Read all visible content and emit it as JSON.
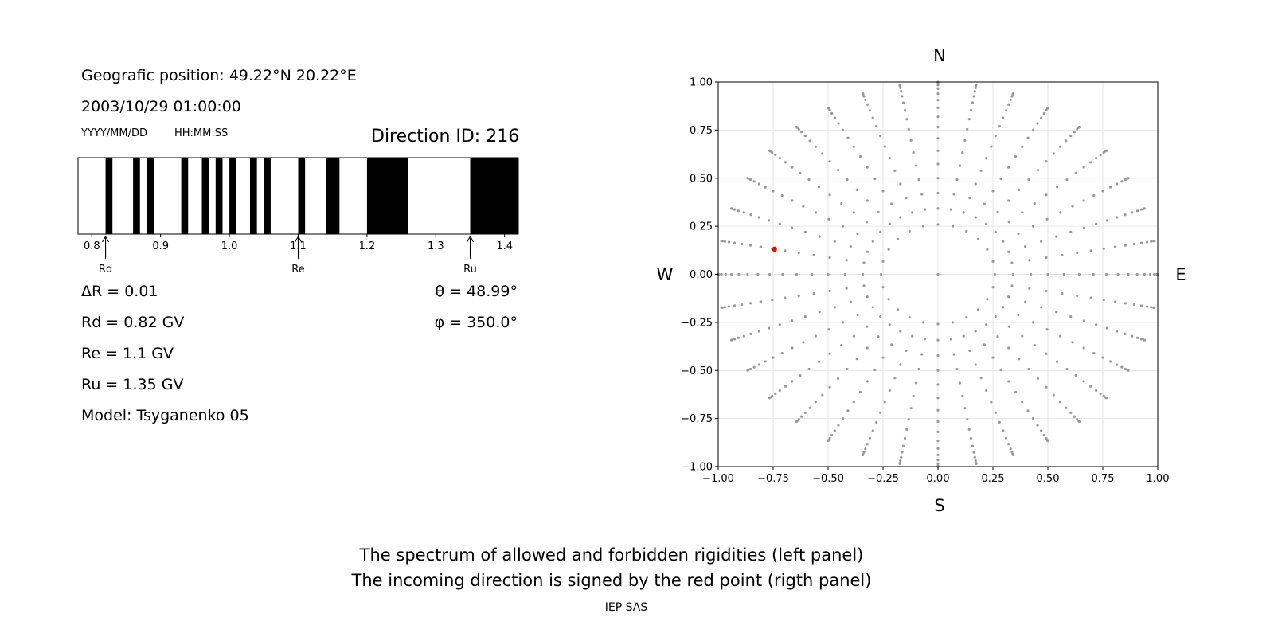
{
  "info": {
    "position": "Geografic position: 49.22°N 20.22°E",
    "datetime": "2003/10/29 01:00:00",
    "date_format": "YYYY/MM/DD",
    "time_format": "HH:MM:SS",
    "direction_id": "Direction ID: 216"
  },
  "params": {
    "delta_r": "ΔR = 0.01",
    "rd": "Rd = 0.82 GV",
    "re": "Re = 1.1 GV",
    "ru": "Ru = 1.35 GV",
    "model": "Model: Tsyganenko 05",
    "theta": "θ = 48.99°",
    "phi": "φ = 350.0°"
  },
  "compass": {
    "n": "N",
    "s": "S",
    "w": "W",
    "e": "E"
  },
  "caption": {
    "line1": "The spectrum of allowed and forbidden rigidities (left panel)",
    "line2": "The incoming direction is signed by the red point (rigth panel)",
    "credit": "IEP SAS"
  },
  "colors": {
    "forbidden": "#000000",
    "allowed": "#ffffff",
    "grid_points": "#999999",
    "highlight": "#ff0000"
  },
  "chart_data": [
    {
      "type": "bar",
      "subtype": "rigidity-spectrum",
      "xlim": [
        0.78,
        1.42
      ],
      "x_ticks": [
        0.8,
        0.9,
        1.0,
        1.1,
        1.2,
        1.3,
        1.4
      ],
      "x_tick_labels": [
        "0.8",
        "0.9",
        "1.0",
        "1.1",
        "1.2",
        "1.3",
        "1.4"
      ],
      "forbidden_intervals": [
        [
          0.82,
          0.83
        ],
        [
          0.86,
          0.87
        ],
        [
          0.88,
          0.89
        ],
        [
          0.93,
          0.94
        ],
        [
          0.96,
          0.97
        ],
        [
          0.98,
          0.99
        ],
        [
          1.0,
          1.01
        ],
        [
          1.03,
          1.04
        ],
        [
          1.05,
          1.06
        ],
        [
          1.1,
          1.11
        ],
        [
          1.14,
          1.16
        ],
        [
          1.2,
          1.26
        ],
        [
          1.35,
          1.42
        ]
      ],
      "markers": [
        {
          "label": "Rd",
          "value": 0.82
        },
        {
          "label": "Re",
          "value": 1.1
        },
        {
          "label": "Ru",
          "value": 1.35
        }
      ]
    },
    {
      "type": "scatter",
      "subtype": "direction-grid",
      "xlim": [
        -1.0,
        1.0
      ],
      "ylim": [
        -1.0,
        1.0
      ],
      "x_ticks": [
        -1.0,
        -0.75,
        -0.5,
        -0.25,
        0.0,
        0.25,
        0.5,
        0.75,
        1.0
      ],
      "x_tick_labels": [
        "−1.00",
        "−0.75",
        "−0.50",
        "−0.25",
        "0.00",
        "0.25",
        "0.50",
        "0.75",
        "1.00"
      ],
      "y_ticks": [
        1.0,
        0.75,
        0.5,
        0.25,
        0.0,
        -0.25,
        -0.5,
        -0.75,
        -1.0
      ],
      "y_tick_labels": [
        "1.00",
        "0.75",
        "0.50",
        "0.25",
        "0.00",
        "−0.25",
        "−0.50",
        "−0.75",
        "−1.00"
      ],
      "grid": true,
      "zenith_step_deg": 5,
      "zenith_max_deg": 90,
      "inner_ring_zenith_deg": 15,
      "inner_ring_azimuths": 24,
      "outer_azimuths": 36,
      "highlight": {
        "x": -0.744,
        "y": 0.131
      }
    }
  ]
}
